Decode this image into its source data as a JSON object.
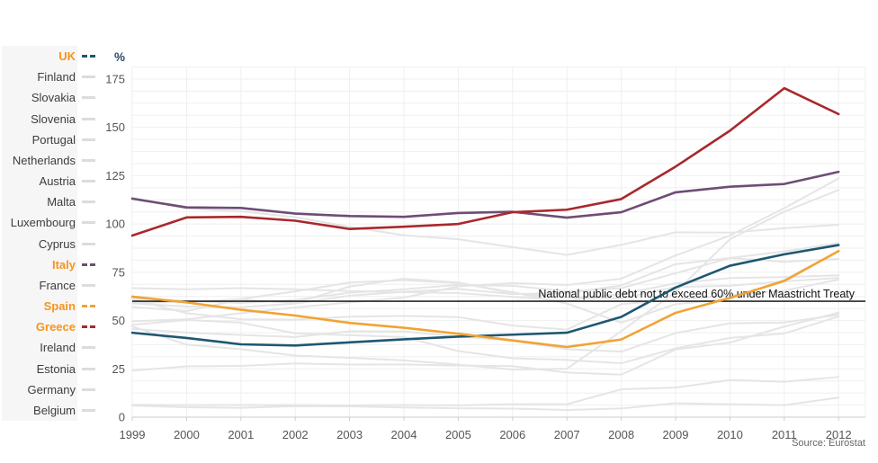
{
  "source_note": "Source: Eurostat",
  "colors": {
    "muted_series": "#e5e5e5",
    "grid": "#efefef",
    "axis": "#cccccc",
    "tick_label": "#555555",
    "highlight_label": "#f7941d",
    "label": "#3d3d3d",
    "legend_bg": "#f6f6f6",
    "reference_line": "#000000",
    "percent_label": "#2a4a68",
    "source": "#666666"
  },
  "legend": {
    "dash_icon": "series-dash-icon",
    "position": "left"
  },
  "chart_data": {
    "type": "line",
    "title": "",
    "xlabel": "",
    "ylabel": "%",
    "x": [
      1999,
      2000,
      2001,
      2002,
      2003,
      2004,
      2005,
      2006,
      2007,
      2008,
      2009,
      2010,
      2011,
      2012
    ],
    "ylim": [
      0,
      181.25
    ],
    "yticks": [
      0,
      25,
      50,
      75,
      100,
      125,
      150,
      175
    ],
    "grid": true,
    "legend_position": "left",
    "reference_line": {
      "value": 60,
      "label": "National public debt not to exceed 60% under Maastricht Treaty",
      "color": "#000000"
    },
    "source": "Source: Eurostat",
    "series": [
      {
        "name": "UK",
        "highlighted": true,
        "color": "#1e5771",
        "values": [
          43.7,
          41.0,
          37.7,
          37.1,
          38.7,
          40.3,
          41.7,
          42.7,
          43.7,
          51.9,
          67.1,
          78.4,
          84.3,
          89.1
        ]
      },
      {
        "name": "Finland",
        "highlighted": false,
        "values": [
          45.7,
          43.8,
          42.5,
          41.5,
          44.5,
          44.4,
          41.7,
          39.6,
          35.2,
          33.9,
          43.5,
          48.6,
          49.0,
          53.0
        ]
      },
      {
        "name": "Slovakia",
        "highlighted": false,
        "values": [
          47.8,
          50.3,
          48.9,
          43.4,
          42.4,
          41.5,
          34.2,
          30.5,
          29.6,
          27.9,
          35.6,
          41.0,
          43.3,
          52.1
        ]
      },
      {
        "name": "Slovenia",
        "highlighted": false,
        "values": [
          24.1,
          26.3,
          26.5,
          27.8,
          27.2,
          27.3,
          26.7,
          26.4,
          23.1,
          22.0,
          35.0,
          38.6,
          46.9,
          54.1
        ]
      },
      {
        "name": "Portugal",
        "highlighted": false,
        "values": [
          49.6,
          50.7,
          53.8,
          56.8,
          59.4,
          61.9,
          67.7,
          69.4,
          68.4,
          71.7,
          83.7,
          94.0,
          108.2,
          123.6
        ]
      },
      {
        "name": "Netherlands",
        "highlighted": false,
        "values": [
          61.1,
          53.8,
          50.7,
          50.5,
          52.0,
          52.4,
          51.8,
          47.4,
          45.3,
          58.5,
          60.8,
          63.1,
          65.5,
          71.2
        ]
      },
      {
        "name": "Austria",
        "highlighted": false,
        "values": [
          66.8,
          66.2,
          66.8,
          66.2,
          65.3,
          64.7,
          64.2,
          62.3,
          60.2,
          63.8,
          69.2,
          72.0,
          72.5,
          73.4
        ]
      },
      {
        "name": "Malta",
        "highlighted": false,
        "values": [
          57.1,
          54.9,
          60.9,
          59.1,
          67.6,
          71.7,
          69.7,
          64.1,
          61.9,
          61.5,
          67.4,
          68.0,
          70.3,
          72.1
        ]
      },
      {
        "name": "Luxembourg",
        "highlighted": false,
        "values": [
          6.4,
          6.2,
          6.3,
          6.3,
          6.1,
          6.3,
          6.1,
          6.7,
          6.7,
          14.4,
          15.3,
          19.2,
          18.3,
          20.8
        ]
      },
      {
        "name": "Cyprus",
        "highlighted": false,
        "values": [
          59.3,
          59.6,
          61.2,
          65.1,
          69.7,
          70.9,
          69.4,
          64.7,
          58.8,
          48.9,
          58.5,
          61.3,
          71.1,
          85.8
        ]
      },
      {
        "name": "Italy",
        "highlighted": true,
        "color": "#6e4d75",
        "values": [
          113.1,
          108.6,
          108.3,
          105.4,
          104.1,
          103.7,
          105.7,
          106.3,
          103.3,
          106.1,
          116.4,
          119.3,
          120.7,
          127.0
        ]
      },
      {
        "name": "France",
        "highlighted": false,
        "values": [
          58.9,
          57.3,
          56.9,
          58.8,
          62.9,
          64.9,
          66.4,
          63.7,
          64.2,
          68.2,
          79.2,
          82.4,
          85.8,
          90.2
        ]
      },
      {
        "name": "Spain",
        "highlighted": true,
        "color": "#f1a333",
        "values": [
          62.4,
          59.4,
          55.6,
          52.6,
          48.8,
          46.3,
          43.2,
          39.7,
          36.3,
          40.2,
          54.0,
          61.7,
          70.5,
          86.0
        ]
      },
      {
        "name": "Greece",
        "highlighted": true,
        "color": "#a9282c",
        "values": [
          94.0,
          103.4,
          103.7,
          101.7,
          97.4,
          98.6,
          100.0,
          106.1,
          107.4,
          112.9,
          129.7,
          148.3,
          170.3,
          156.9
        ]
      },
      {
        "name": "Ireland",
        "highlighted": false,
        "values": [
          47.0,
          37.5,
          35.2,
          31.9,
          30.7,
          29.4,
          27.2,
          24.6,
          25.1,
          44.5,
          64.8,
          92.1,
          106.4,
          117.6
        ]
      },
      {
        "name": "Estonia",
        "highlighted": false,
        "values": [
          6.0,
          5.1,
          4.8,
          5.7,
          5.6,
          5.0,
          4.6,
          4.4,
          3.7,
          4.5,
          7.2,
          6.7,
          6.2,
          10.1
        ]
      },
      {
        "name": "Germany",
        "highlighted": false,
        "values": [
          61.3,
          60.2,
          59.1,
          60.7,
          64.4,
          66.2,
          68.5,
          68.0,
          65.2,
          66.8,
          74.5,
          82.4,
          80.4,
          81.9
        ]
      },
      {
        "name": "Belgium",
        "highlighted": false,
        "values": [
          113.7,
          107.9,
          106.6,
          103.5,
          98.5,
          94.2,
          92.1,
          88.0,
          84.0,
          89.2,
          95.7,
          95.5,
          97.8,
          99.6
        ]
      }
    ]
  }
}
